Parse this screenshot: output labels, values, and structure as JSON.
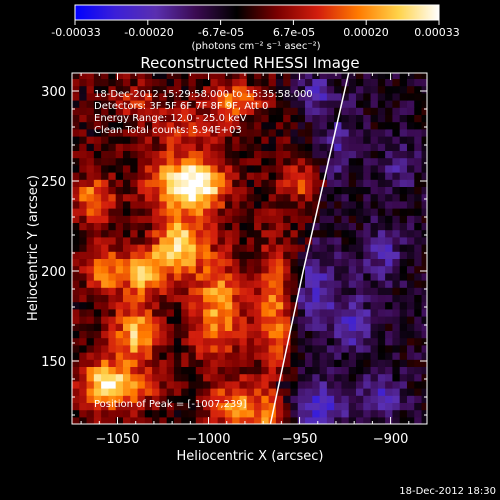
{
  "colorbar": {
    "tick_labels": [
      "-0.00033",
      "-0.00020",
      "-6.7e-05",
      "6.7e-05",
      "0.00020",
      "0.00033"
    ],
    "units_label": "(photons cm⁻² s⁻¹ asec⁻²)",
    "range": [
      -0.00033,
      0.00033
    ],
    "colors": [
      "#0000ff",
      "#3b1fd8",
      "#5a2fb0",
      "#3a0a50",
      "#000000",
      "#7a0000",
      "#d21d0d",
      "#ff7a00",
      "#ffd34a",
      "#ffffff"
    ]
  },
  "chart_data": {
    "type": "heatmap",
    "title": "Reconstructed RHESSI Image",
    "xlabel": "Heliocentric X (arcsec)",
    "ylabel": "Heliocentric Y (arcsec)",
    "xlim": [
      -1075,
      -880
    ],
    "ylim": [
      115,
      310
    ],
    "xticks": [
      -1050,
      -1000,
      -950,
      -900
    ],
    "yticks": [
      150,
      200,
      250,
      300
    ],
    "xtick_labels": [
      "−1050",
      "−1000",
      "−950",
      "−900"
    ],
    "ytick_labels": [
      "150",
      "200",
      "250",
      "300"
    ],
    "annotations": [
      "18-Dec-2012 15:29:58.000 to 15:35:58.000",
      "Detectors: 3F 5F 6F 7F 8F 9F, Att 0",
      "Energy Range: 12.0 - 25.0 keV",
      "Clean     Total counts: 5.94E+03"
    ],
    "peak_label": "Position of Peak = [-1007,239]",
    "peak": [
      -1007,
      239
    ],
    "limb_line": [
      [
        -966,
        115
      ],
      [
        -948,
        200
      ],
      [
        -923,
        310
      ]
    ],
    "hot_blobs": [
      {
        "x": -1005,
        "y": 248,
        "sx": 10,
        "sy": 10,
        "a": 1.0
      },
      {
        "x": -1022,
        "y": 250,
        "sx": 10,
        "sy": 12,
        "a": 0.55
      },
      {
        "x": -1015,
        "y": 215,
        "sx": 9,
        "sy": 10,
        "a": 0.9
      },
      {
        "x": -1035,
        "y": 200,
        "sx": 9,
        "sy": 9,
        "a": 0.8
      },
      {
        "x": -1040,
        "y": 165,
        "sx": 8,
        "sy": 12,
        "a": 0.75
      },
      {
        "x": -995,
        "y": 180,
        "sx": 10,
        "sy": 20,
        "a": 0.65
      },
      {
        "x": -1063,
        "y": 240,
        "sx": 8,
        "sy": 9,
        "a": 0.6
      },
      {
        "x": -1058,
        "y": 200,
        "sx": 7,
        "sy": 10,
        "a": 0.55
      },
      {
        "x": -1058,
        "y": 140,
        "sx": 8,
        "sy": 10,
        "a": 0.5
      },
      {
        "x": -985,
        "y": 125,
        "sx": 10,
        "sy": 10,
        "a": 0.55
      },
      {
        "x": -965,
        "y": 120,
        "sx": 8,
        "sy": 8,
        "a": 0.5
      },
      {
        "x": -985,
        "y": 295,
        "sx": 10,
        "sy": 6,
        "a": 0.55
      },
      {
        "x": -950,
        "y": 250,
        "sx": 7,
        "sy": 7,
        "a": 0.45
      },
      {
        "x": -963,
        "y": 180,
        "sx": 8,
        "sy": 25,
        "a": 0.55
      },
      {
        "x": -1040,
        "y": 295,
        "sx": 9,
        "sy": 7,
        "a": 0.3
      },
      {
        "x": -1048,
        "y": 135,
        "sx": 14,
        "sy": 8,
        "a": 0.55
      },
      {
        "x": -1010,
        "y": 280,
        "sx": 14,
        "sy": 8,
        "a": 0.35
      }
    ],
    "cold_blobs": [
      {
        "x": -940,
        "y": 300,
        "sx": 10,
        "sy": 10,
        "a": 0.5
      },
      {
        "x": -933,
        "y": 270,
        "sx": 8,
        "sy": 12,
        "a": 0.35
      },
      {
        "x": -942,
        "y": 190,
        "sx": 10,
        "sy": 15,
        "a": 0.4
      },
      {
        "x": -920,
        "y": 170,
        "sx": 7,
        "sy": 10,
        "a": 0.45
      },
      {
        "x": -940,
        "y": 125,
        "sx": 10,
        "sy": 9,
        "a": 0.55
      },
      {
        "x": -905,
        "y": 130,
        "sx": 8,
        "sy": 8,
        "a": 0.4
      },
      {
        "x": -905,
        "y": 210,
        "sx": 8,
        "sy": 10,
        "a": 0.35
      },
      {
        "x": -895,
        "y": 260,
        "sx": 6,
        "sy": 10,
        "a": 0.3
      }
    ]
  },
  "footer": {
    "timestamp": "18-Dec-2012 18:30"
  }
}
